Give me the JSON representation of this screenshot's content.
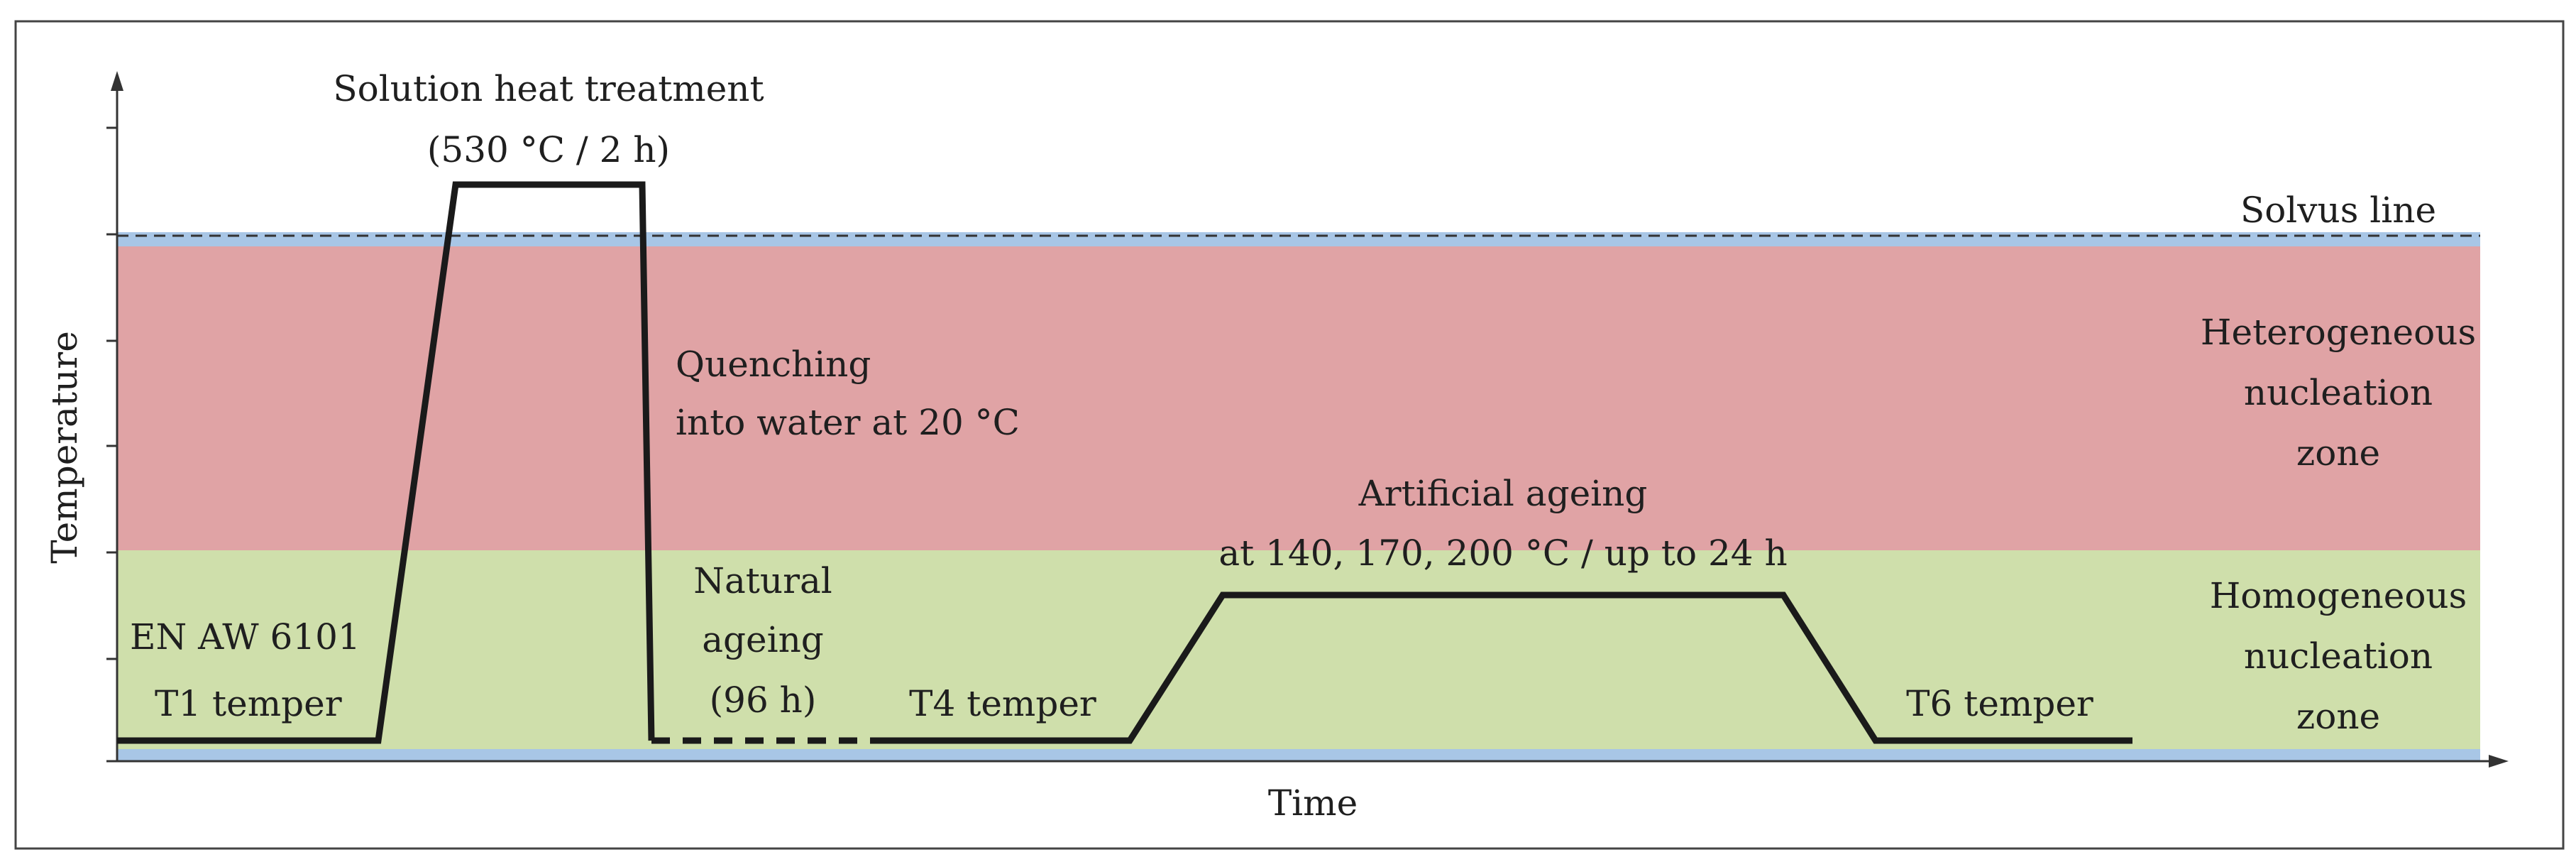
{
  "axes": {
    "y_label": "Temperature",
    "x_label": "Time"
  },
  "zones": {
    "solvus_label": "Solvus line",
    "heterogeneous_label_lines": [
      "Heterogeneous",
      "nucleation",
      "zone"
    ],
    "homogeneous_label_lines": [
      "Homogeneous",
      "nucleation",
      "zone"
    ]
  },
  "stages": {
    "solution_heat_treatment_lines": [
      "Solution heat treatment",
      "(530 °C / 2 h)"
    ],
    "quenching_lines": [
      "Quenching",
      "into water at 20 °C"
    ],
    "natural_ageing_lines": [
      "Natural",
      "ageing",
      "(96 h)"
    ],
    "artificial_ageing_lines": [
      "Artificial ageing",
      "at 140, 170, 200 °C / up to 24 h"
    ],
    "initial_state_lines": [
      "EN AW 6101",
      "T1 temper"
    ],
    "t4_label": "T4 temper",
    "t6_label": "T6 temper"
  },
  "colors": {
    "heterogeneous_zone": "#e0a3a5",
    "homogeneous_zone": "#cfdfab",
    "solvus_band": "#a8c6e6",
    "line": "#1a1a1a"
  }
}
